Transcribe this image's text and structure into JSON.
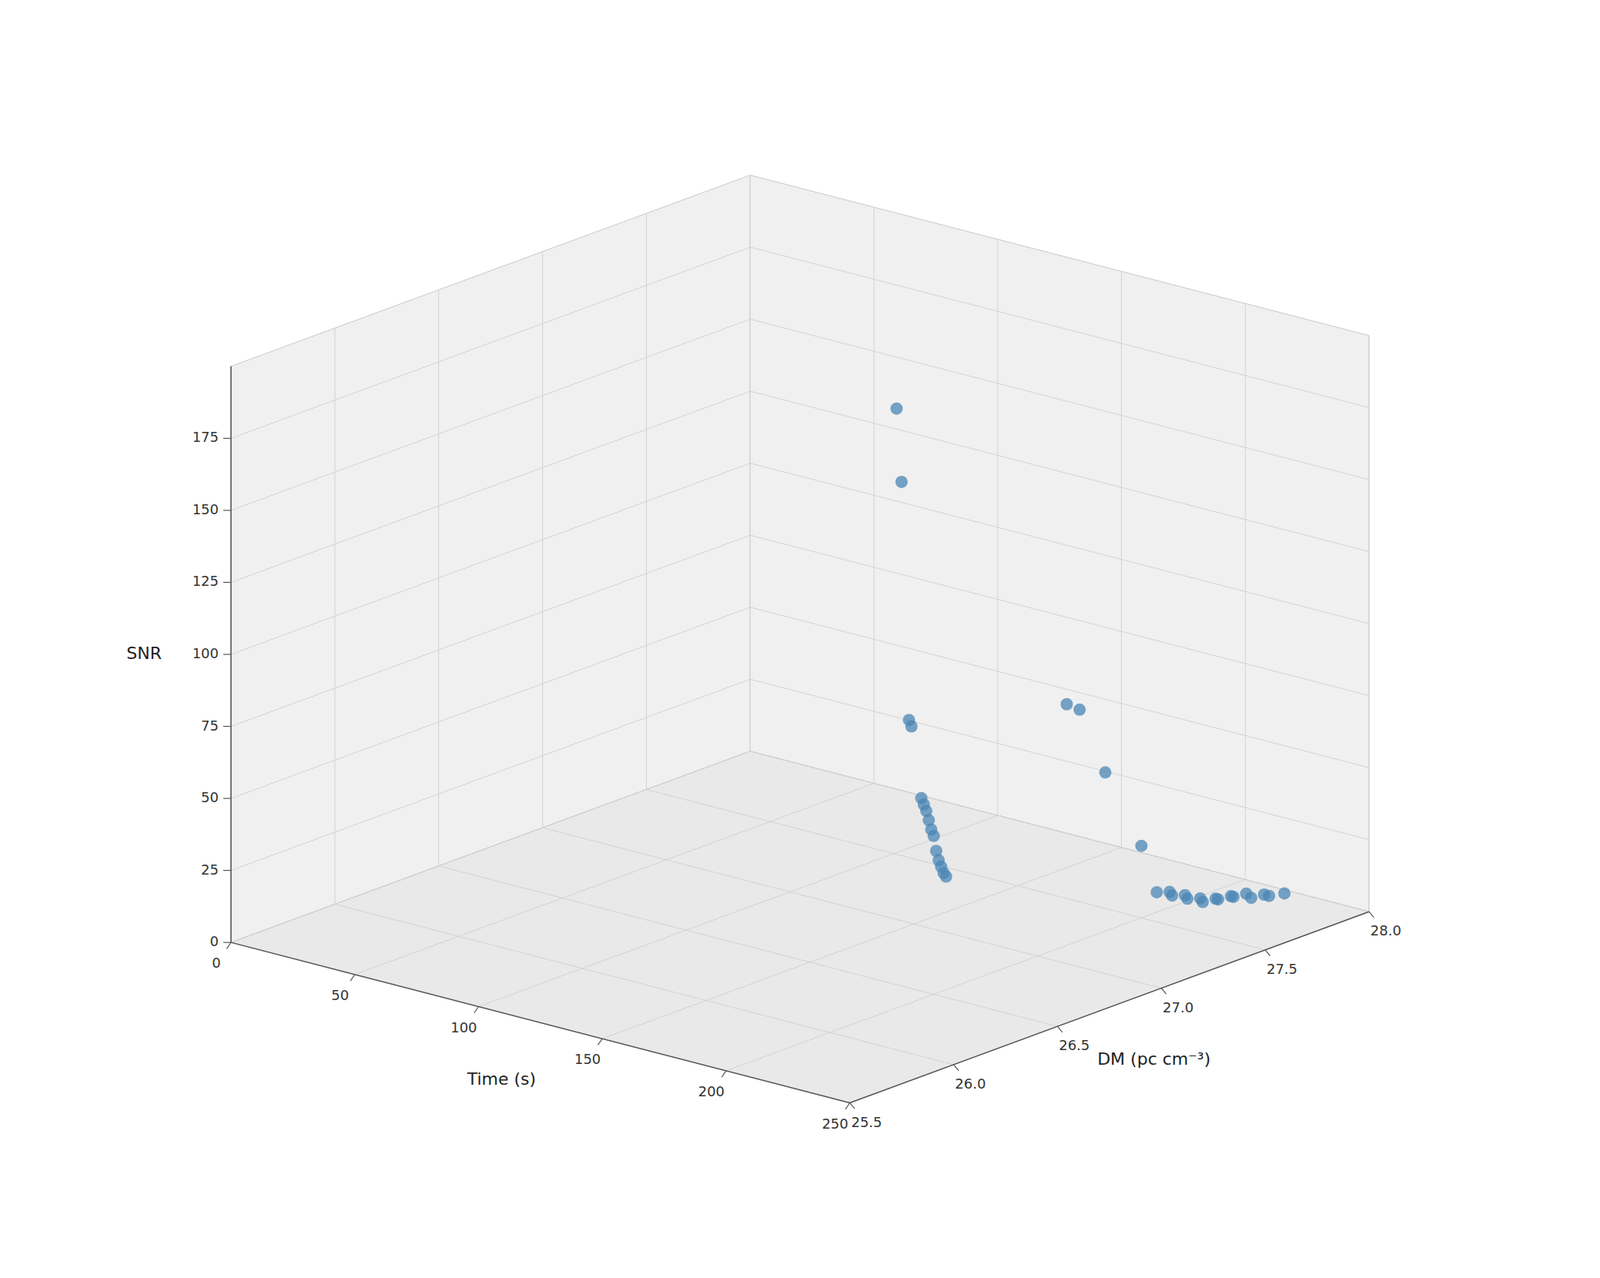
{
  "chart_data": {
    "type": "scatter3d",
    "xlabel": "Time (s)",
    "ylabel": "DM (pc cm⁻³)",
    "zlabel": "SNR",
    "color": "#4a86b4",
    "grid": true,
    "xlim": [
      0,
      250
    ],
    "ylim": [
      25.5,
      28.0
    ],
    "zlim": [
      0,
      200
    ],
    "xticks": [
      0,
      50,
      100,
      150,
      200,
      250
    ],
    "yticks": [
      25.5,
      {
        "value": 26.0,
        "label": "26.0"
      },
      26.5,
      {
        "value": 27.0,
        "label": "27.0"
      },
      27.5,
      {
        "value": 28.0,
        "label": "28.0"
      }
    ],
    "zticks": [
      0,
      25,
      50,
      75,
      100,
      125,
      150,
      175
    ],
    "x": [
      185,
      187,
      190,
      191,
      195,
      196,
      197,
      198,
      199,
      200,
      201,
      202,
      203,
      204,
      205,
      195,
      196,
      198,
      200,
      202,
      203,
      204,
      205,
      206,
      207,
      208,
      209,
      210,
      211,
      212,
      213,
      215,
      216,
      218,
      220
    ],
    "y": [
      26.5,
      26.5,
      26.5,
      26.5,
      26.5,
      26.5,
      26.5,
      26.5,
      26.5,
      26.5,
      26.5,
      26.5,
      26.5,
      26.5,
      26.5,
      27.2,
      27.25,
      27.35,
      27.5,
      27.55,
      27.6,
      27.6,
      27.65,
      27.65,
      27.7,
      27.7,
      27.75,
      27.75,
      27.8,
      27.8,
      27.85,
      27.85,
      27.9,
      27.9,
      27.95
    ],
    "z": [
      200,
      175,
      93,
      91,
      67,
      65,
      63,
      60,
      57,
      55,
      50,
      47,
      45,
      43,
      42,
      81,
      78,
      54,
      25,
      8,
      7,
      6,
      5,
      4,
      3,
      2,
      2,
      2,
      2,
      2,
      2,
      1,
      1,
      1,
      1
    ]
  }
}
